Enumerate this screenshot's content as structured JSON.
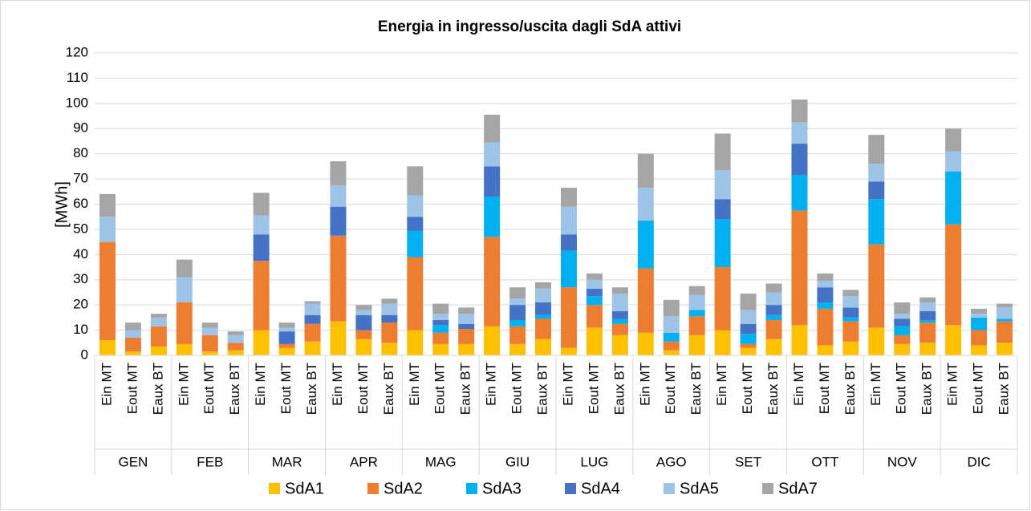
{
  "chart_data": {
    "type": "stacked_bar",
    "title": "Energia in ingresso/uscita dagli SdA attivi",
    "y_label": "[MWh]",
    "groups": [
      "GEN",
      "FEB",
      "MAR",
      "APR",
      "MAG",
      "GIU",
      "LUG",
      "AGO",
      "SET",
      "OTT",
      "NOV",
      "DIC"
    ],
    "categories": [
      "Ein MT",
      "Eout MT",
      "Eaux BT",
      "Ein MT",
      "Eout MT",
      "Eaux BT",
      "Ein MT",
      "Eout MT",
      "Eaux BT",
      "Ein MT",
      "Eout MT",
      "Eaux BT",
      "Ein MT",
      "Eout MT",
      "Eaux BT",
      "Ein MT",
      "Eout MT",
      "Eaux BT",
      "Ein MT",
      "Eout MT",
      "Eaux BT",
      "Ein MT",
      "Eout MT",
      "Eaux BT",
      "Ein MT",
      "Eout MT",
      "Eaux BT",
      "Ein MT",
      "Eout MT",
      "Eaux BT",
      "Ein MT",
      "Eout MT",
      "Eaux BT",
      "Ein MT",
      "Eout MT",
      "Eaux BT"
    ],
    "series": [
      {
        "name": "SdA1",
        "color": "#ffc000",
        "values": [
          6,
          1.5,
          3.5,
          4.5,
          1.5,
          2,
          10,
          3,
          5.5,
          13.5,
          6.5,
          5,
          10,
          4.5,
          4.5,
          11.5,
          4.5,
          6.5,
          3,
          11,
          8,
          9,
          2,
          8,
          10,
          3,
          6.5,
          12,
          4,
          5.5,
          11,
          4.5,
          5,
          12,
          4,
          5
        ]
      },
      {
        "name": "SdA2",
        "color": "#ed7d31",
        "values": [
          39,
          5.5,
          8,
          16.5,
          6.5,
          3,
          27.5,
          1.5,
          7,
          34,
          3.5,
          8,
          29,
          4.5,
          6,
          35.5,
          7,
          8,
          24,
          9,
          4.5,
          25.5,
          3.5,
          7.5,
          25,
          1.5,
          7.5,
          45.5,
          14.5,
          8,
          33,
          3.5,
          8,
          40,
          6,
          8.5
        ]
      },
      {
        "name": "SdA3",
        "color": "#00b0f0",
        "values": [
          0,
          0,
          0,
          0,
          0,
          0,
          0,
          0,
          0,
          0,
          0,
          0,
          10.5,
          3,
          0,
          16,
          2.5,
          1.5,
          14.5,
          3.5,
          2,
          19,
          3.5,
          2.5,
          19,
          4,
          2,
          14,
          2.5,
          1.5,
          18,
          3.5,
          1,
          21,
          5,
          1
        ]
      },
      {
        "name": "SdA4",
        "color": "#4472c4",
        "values": [
          0,
          0,
          0,
          0,
          0,
          0,
          10.5,
          5,
          3.5,
          11.5,
          6,
          3,
          5.5,
          2,
          2,
          12,
          6,
          5,
          6.5,
          3,
          3,
          0,
          0,
          0,
          8,
          4,
          4,
          12.5,
          6,
          4,
          7,
          3,
          3.5,
          0,
          0,
          0
        ]
      },
      {
        "name": "SdA5",
        "color": "#9dc3e6",
        "values": [
          10,
          3,
          3.5,
          10,
          3,
          3,
          7.5,
          1.5,
          4.5,
          8.5,
          2,
          4.5,
          8.5,
          2.5,
          4,
          9.5,
          2.5,
          5.5,
          11,
          3.5,
          7,
          13,
          6.5,
          6,
          11.5,
          5.5,
          5,
          8.5,
          2.5,
          4.5,
          7,
          2,
          3.5,
          8,
          1.5,
          4.5
        ]
      },
      {
        "name": "SdA7",
        "color": "#a5a5a5",
        "values": [
          9,
          3,
          1.5,
          7,
          2,
          1.5,
          9,
          2,
          1,
          9.5,
          2,
          2,
          11.5,
          4,
          2.5,
          11,
          4.5,
          2.5,
          7.5,
          2.5,
          2.5,
          13.5,
          6.5,
          3.5,
          14.5,
          6.5,
          3.5,
          9,
          3,
          2.5,
          11.5,
          4.5,
          2,
          9,
          2,
          1.5
        ]
      }
    ],
    "ylim": [
      0,
      120
    ],
    "yticks": [
      0,
      10,
      20,
      30,
      40,
      50,
      60,
      70,
      80,
      90,
      100,
      110,
      120
    ],
    "grid": true,
    "legend": "bottom"
  }
}
